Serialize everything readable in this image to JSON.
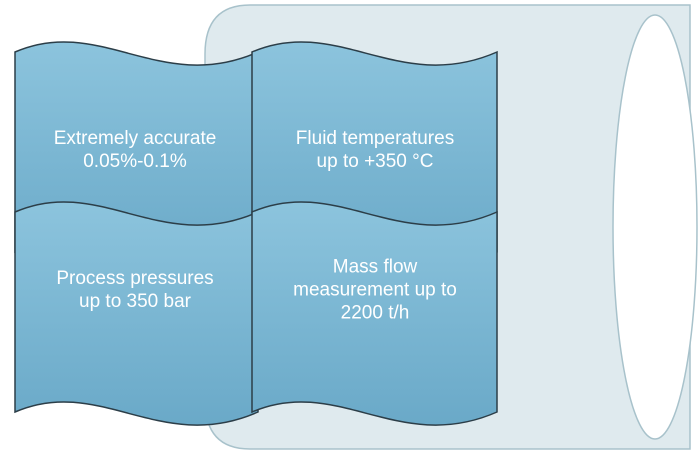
{
  "features": [
    {
      "text": "Extremely accurate 0.05%-0.1%"
    },
    {
      "text": "Fluid temperatures up to +350 °C"
    },
    {
      "text": "Process pressures up to 350 bar"
    },
    {
      "text": "Mass flow measurement up to 2200 t/h"
    }
  ]
}
